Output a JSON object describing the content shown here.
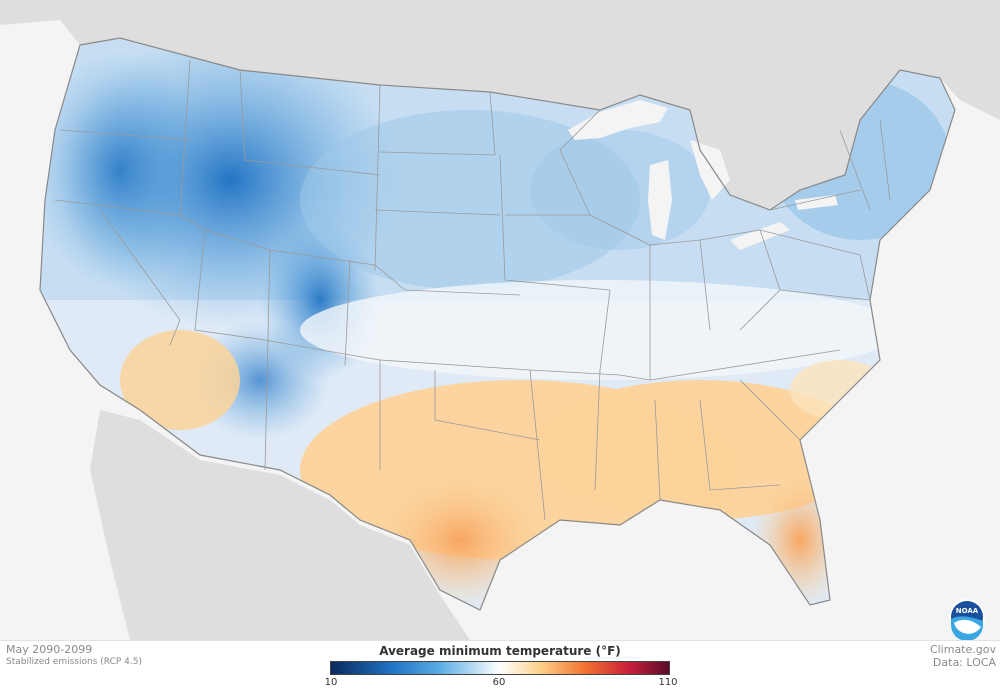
{
  "map": {
    "description_title": "Average minimum temperature",
    "unit": "(°F)",
    "period": "May 2090-2099",
    "scenario": "Stabilized emissions (RCP 4.5)",
    "legend": {
      "min": "10",
      "mid": "60",
      "max": "110",
      "colors": [
        "#0b2a5c",
        "#1f73c4",
        "#58ade3",
        "#ffffff",
        "#fdd089",
        "#f2742f",
        "#c91f3a",
        "#5c0a2a"
      ]
    },
    "credits": {
      "source": "Climate.gov",
      "data": "Data: LOCA"
    },
    "logo": "NOAA",
    "colors": {
      "cold": "#1f73c4",
      "cool": "#7fb7e4",
      "neutral": "#eef4fa",
      "warm": "#fcd39a",
      "hot": "#f2894a",
      "land_bg": "#dcdcdc",
      "water_bg": "#f4f4f4"
    }
  }
}
